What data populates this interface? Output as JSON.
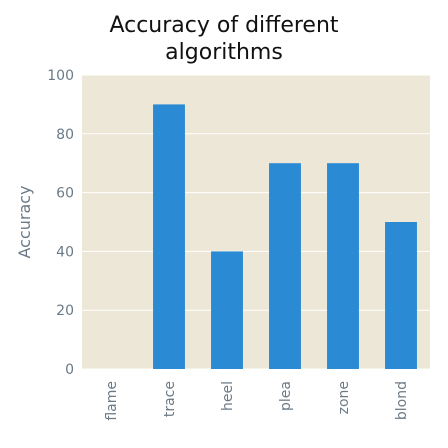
{
  "chart_data": {
    "type": "bar",
    "title": "Accuracy of different\nalgorithms",
    "xlabel": "",
    "ylabel": "Accuracy",
    "categories": [
      "flame",
      "trace",
      "heel",
      "plea",
      "zone",
      "blond"
    ],
    "values": [
      0,
      90,
      40,
      70,
      70,
      50
    ],
    "ylim": [
      0,
      100
    ],
    "yticks": [
      0,
      20,
      40,
      60,
      80,
      100
    ],
    "grid": true,
    "legend": "none",
    "colors": {
      "bar": "#2a8ad4",
      "plot_background": "#ede7d7",
      "grid": "#ffffff",
      "text": "#6b7a86"
    }
  }
}
